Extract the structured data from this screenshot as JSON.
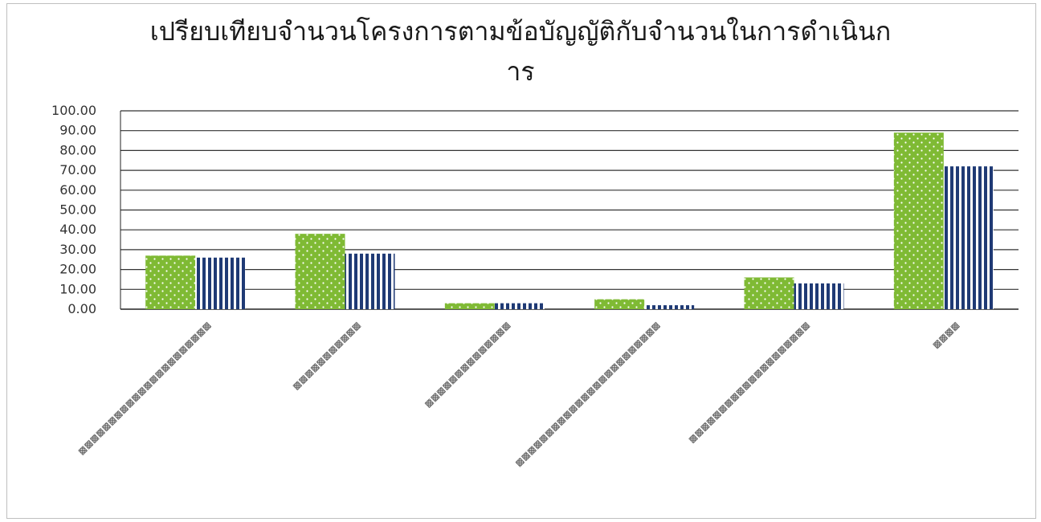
{
  "chart_data": {
    "type": "bar",
    "title_line1": "เปรียบเทียบจำนวนโครงการตามข้อบัญญัติกับจำนวนในการดำเนินก",
    "title_line2": "าร",
    "categories": [
      "▩▩▩▩▩▩▩▩▩▩▩▩▩▩▩▩▩▩▩▩▩▩",
      "▩▩▩▩▩▩▩▩▩▩▩",
      "▩▩▩▩▩▩▩▩▩▩▩▩▩▩",
      "▩▩▩▩▩▩▩▩▩▩▩▩▩▩▩▩▩▩▩▩▩▩▩▩",
      "▩▩▩▩▩▩▩▩▩▩▩▩▩▩▩▩▩▩▩▩",
      "▩▩▩▩"
    ],
    "series": [
      {
        "values": [
          27,
          38,
          3,
          5,
          16,
          89
        ],
        "color": "#7fba34",
        "pattern": "dots"
      },
      {
        "values": [
          26,
          28,
          3,
          2,
          13,
          72
        ],
        "color": "#1f3a75",
        "pattern": "vertical-stripes"
      }
    ],
    "ylim": [
      0,
      100
    ],
    "yticks": [
      "0.00",
      "10.00",
      "20.00",
      "30.00",
      "40.00",
      "50.00",
      "60.00",
      "70.00",
      "80.00",
      "90.00",
      "100.00"
    ],
    "grid": true,
    "legend": "none"
  }
}
